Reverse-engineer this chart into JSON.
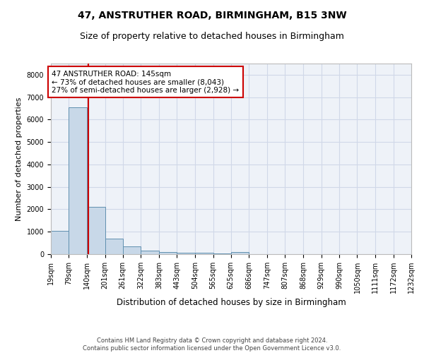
{
  "title1": "47, ANSTRUTHER ROAD, BIRMINGHAM, B15 3NW",
  "title2": "Size of property relative to detached houses in Birmingham",
  "xlabel": "Distribution of detached houses by size in Birmingham",
  "ylabel": "Number of detached properties",
  "footer1": "Contains HM Land Registry data © Crown copyright and database right 2024.",
  "footer2": "Contains public sector information licensed under the Open Government Licence v3.0.",
  "annotation_line1": "47 ANSTRUTHER ROAD: 145sqm",
  "annotation_line2": "← 73% of detached houses are smaller (8,043)",
  "annotation_line3": "27% of semi-detached houses are larger (2,928) →",
  "property_size": 145,
  "bar_edges": [
    19,
    79,
    140,
    201,
    261,
    322,
    383,
    443,
    504,
    565,
    625,
    686,
    747,
    807,
    868,
    929,
    990,
    1050,
    1111,
    1172,
    1232
  ],
  "bar_heights": [
    1050,
    6550,
    2100,
    680,
    340,
    160,
    80,
    60,
    55,
    45,
    100,
    0,
    0,
    0,
    0,
    0,
    0,
    0,
    0,
    0
  ],
  "bar_color": "#c8d8e8",
  "bar_edge_color": "#6090b0",
  "vline_color": "#cc0000",
  "box_edge_color": "#cc0000",
  "grid_color": "#d0d8e8",
  "ylim": [
    0,
    8500
  ],
  "yticks": [
    0,
    1000,
    2000,
    3000,
    4000,
    5000,
    6000,
    7000,
    8000
  ],
  "background_color": "#eef2f8",
  "title1_fontsize": 10,
  "title2_fontsize": 9,
  "ylabel_fontsize": 8,
  "xlabel_fontsize": 8.5,
  "tick_fontsize": 7,
  "annotation_fontsize": 7.5,
  "footer_fontsize": 6
}
